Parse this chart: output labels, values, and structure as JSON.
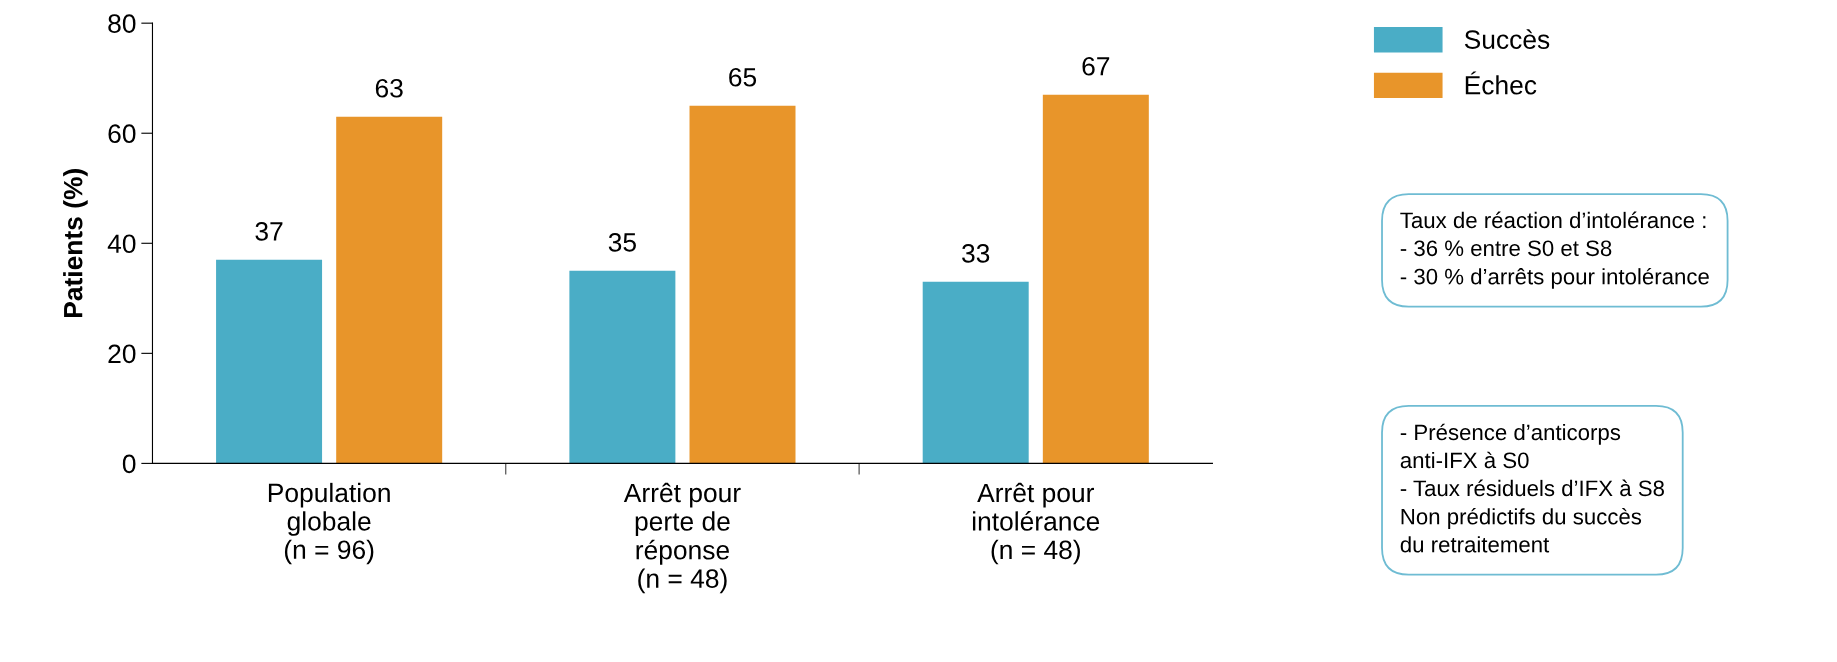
{
  "chart_data": {
    "type": "bar",
    "ylabel": "Patients (%)",
    "categories": [
      "Population\nglobale\n(n = 96)",
      "Arrêt pour\nperte de\nréponse\n(n = 48)",
      "Arrêt pour\nintolérance\n(n = 48)"
    ],
    "series": [
      {
        "name": "Succès",
        "color": "#4aadc6",
        "values": [
          37,
          35,
          33
        ]
      },
      {
        "name": "Échec",
        "color": "#e8952a",
        "values": [
          63,
          65,
          67
        ]
      }
    ],
    "ylim": [
      0,
      80
    ],
    "yticks": [
      0,
      20,
      40,
      60,
      80
    ],
    "grid": false,
    "legend": "top right",
    "data_labels": true,
    "annotations": [
      "Taux de réaction d’intolérance :\n- 36 % entre S0 et S8\n- 30 % d’arrêts pour intolérance",
      "- Présence d’anticorps\nanti-IFX à S0\n- Taux résiduels d’IFX à S8\nNon prédictifs du succès\ndu retraitement"
    ]
  }
}
